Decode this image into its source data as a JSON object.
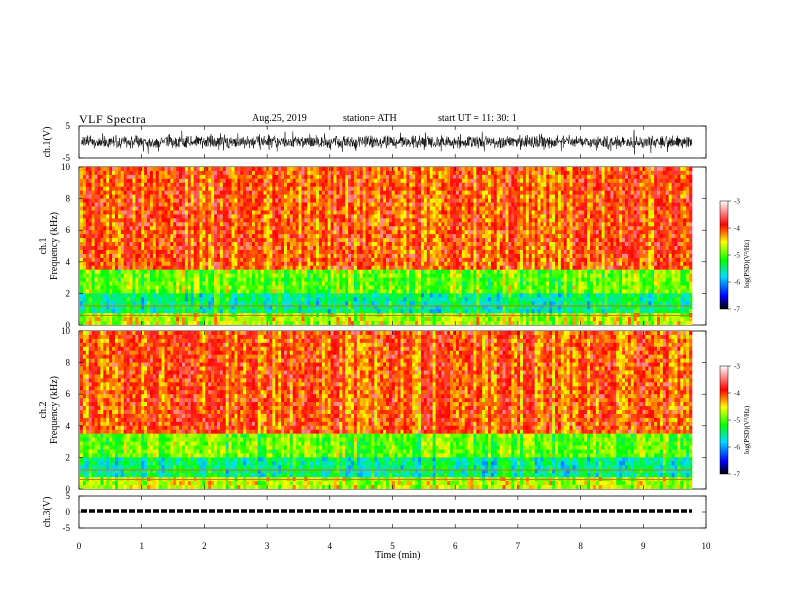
{
  "header": {
    "title": "VLF  Spectra",
    "date": "Aug.25, 2019",
    "station": "station= ATH",
    "start": "start  UT  =    11: 30: 1"
  },
  "chart_data": [
    {
      "type": "line",
      "name": "ch1-waveform",
      "ylabel": "ch.1(V)",
      "ylim": [
        -5,
        5
      ],
      "yticks": [
        "5",
        "-5"
      ],
      "xlim": [
        0,
        10
      ],
      "color": "#000000"
    },
    {
      "type": "heatmap",
      "name": "ch1-spectrogram",
      "ylabel_top": "ch.1",
      "ylabel": "Frequency  (kHz)",
      "ylim": [
        0,
        10
      ],
      "yticks": [
        "0",
        "2",
        "4",
        "6",
        "8",
        "10"
      ],
      "xlim": [
        0,
        10
      ],
      "colorbar": {
        "label": "log(PSD)(V²/Hz)",
        "range": [
          -7,
          -3
        ],
        "ticks": [
          "-3",
          "-4",
          "-5",
          "-6",
          "-7"
        ]
      }
    },
    {
      "type": "heatmap",
      "name": "ch2-spectrogram",
      "ylabel_top": "ch.2",
      "ylabel": "Frequency  (kHz)",
      "ylim": [
        0,
        10
      ],
      "yticks": [
        "0",
        "2",
        "4",
        "6",
        "8",
        "10"
      ],
      "xlim": [
        0,
        10
      ],
      "colorbar": {
        "label": "log(PSD)(V²/Hz)",
        "range": [
          -7,
          -3
        ],
        "ticks": [
          "-3",
          "-4",
          "-5",
          "-6",
          "-7"
        ]
      }
    },
    {
      "type": "line",
      "name": "ch3-waveform",
      "ylabel": "ch.3(V)",
      "ylim": [
        -5,
        5
      ],
      "yticks": [
        "5",
        "0",
        "-5"
      ],
      "xlim": [
        0,
        10
      ],
      "color": "#000000"
    }
  ],
  "xaxis": {
    "label": "Time  (min)",
    "ticks": [
      "0",
      "1",
      "2",
      "3",
      "4",
      "5",
      "6",
      "7",
      "8",
      "9",
      "10"
    ]
  },
  "colors": {
    "colormap": [
      "#000000",
      "#0000ff",
      "#00ddff",
      "#00ff00",
      "#ffff00",
      "#ff0000",
      "#ffffff"
    ]
  }
}
